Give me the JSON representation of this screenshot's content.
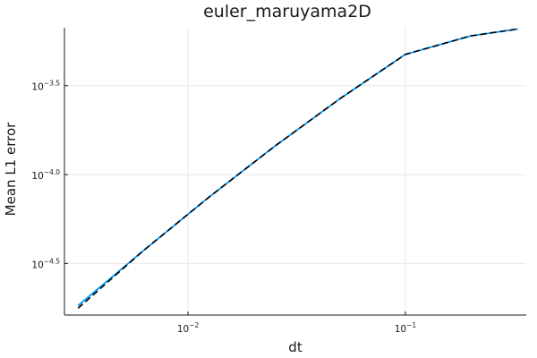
{
  "chart_data": {
    "type": "line",
    "title": "euler_maruyama2D",
    "xlabel": "dt",
    "ylabel": "Mean L1 error",
    "xscale": "log10",
    "yscale": "log10",
    "xlim": [
      0.0027,
      0.36
    ],
    "ylim": [
      1.62e-05,
      0.00067
    ],
    "grid": true,
    "legend": "none",
    "x_ticks": [
      {
        "value": 0.01,
        "base": "10",
        "exponent": "−2"
      },
      {
        "value": 0.1,
        "base": "10",
        "exponent": "−1"
      }
    ],
    "y_ticks": [
      {
        "value": 3.1623e-05,
        "base": "10",
        "exponent": "−4.5"
      },
      {
        "value": 0.0001,
        "base": "10",
        "exponent": "−4.0"
      },
      {
        "value": 0.00031623,
        "base": "10",
        "exponent": "−3.5"
      }
    ],
    "series": [
      {
        "color": "#009af9",
        "style": "solid",
        "x": [
          0.00312,
          0.00625,
          0.0125,
          0.025,
          0.05,
          0.1,
          0.2,
          0.33
        ],
        "y": [
          1.83e-05,
          3.74e-05,
          7.47e-05,
          0.000144,
          0.000267,
          0.000474,
          0.000603,
          0.000659
        ]
      },
      {
        "color": "#000000",
        "style": "dashed",
        "x": [
          0.00312,
          0.00625,
          0.0125,
          0.025,
          0.05,
          0.1,
          0.2,
          0.33
        ],
        "y": [
          1.77e-05,
          3.74e-05,
          7.47e-05,
          0.000144,
          0.000267,
          0.000474,
          0.000603,
          0.000659
        ]
      }
    ]
  }
}
